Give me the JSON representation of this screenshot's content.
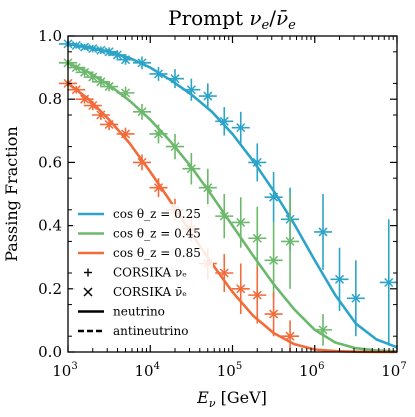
{
  "chart_data": {
    "type": "line",
    "title": "Prompt νₑ/ν̄ₑ",
    "title_parts": {
      "pre": "Prompt ",
      "nu": "ν",
      "sub_e": "e",
      "slash": "/",
      "nubar": "ν̄",
      "sub_e2": "e"
    },
    "xlabel": "E_ν [GeV]",
    "xlabel_parts": {
      "E": "E",
      "sub": "ν",
      "unit": " [GeV]"
    },
    "ylabel": "Passing Fraction",
    "x_scale": "log",
    "xlim": [
      1000,
      10000000
    ],
    "ylim": [
      0,
      1.0
    ],
    "x_ticks": [
      {
        "value": 1000,
        "base": "10",
        "exp": "3"
      },
      {
        "value": 10000,
        "base": "10",
        "exp": "4"
      },
      {
        "value": 100000,
        "base": "10",
        "exp": "5"
      },
      {
        "value": 1000000,
        "base": "10",
        "exp": "6"
      },
      {
        "value": 10000000,
        "base": "10",
        "exp": "7"
      }
    ],
    "y_ticks": [
      {
        "value": 0.0,
        "label": "0.0"
      },
      {
        "value": 0.2,
        "label": "0.2"
      },
      {
        "value": 0.4,
        "label": "0.4"
      },
      {
        "value": 0.6,
        "label": "0.6"
      },
      {
        "value": 0.8,
        "label": "0.8"
      },
      {
        "value": 1.0,
        "label": "1.0"
      }
    ],
    "grid": false,
    "legend_position": "bottom-left",
    "legend": [
      {
        "kind": "line",
        "color": "#2ca4c8",
        "label": "cos θ_z = 0.25"
      },
      {
        "kind": "line",
        "color": "#6cb86c",
        "label": "cos θ_z = 0.45"
      },
      {
        "kind": "line",
        "color": "#f26b3a",
        "label": "cos θ_z = 0.85"
      },
      {
        "kind": "plus",
        "label": "CORSIKA νₑ"
      },
      {
        "kind": "cross",
        "label": "CORSIKA ν̄ₑ"
      },
      {
        "kind": "solid",
        "label": "neutrino"
      },
      {
        "kind": "dashed",
        "label": "antineutrino"
      }
    ],
    "series": [
      {
        "name": "cos θ_z = 0.25",
        "color": "#2ca4c8",
        "curve_log10E": [
          3.0,
          3.25,
          3.5,
          3.75,
          4.0,
          4.25,
          4.5,
          4.75,
          5.0,
          5.25,
          5.5,
          5.75,
          6.0,
          6.25,
          6.5,
          6.75,
          7.0
        ],
        "curve_y": [
          0.975,
          0.965,
          0.95,
          0.93,
          0.9,
          0.86,
          0.815,
          0.76,
          0.69,
          0.605,
          0.51,
          0.405,
          0.29,
          0.18,
          0.09,
          0.04,
          0.015
        ],
        "points": [
          {
            "x": 1000,
            "y": 0.975,
            "yerr": 0.01
          },
          {
            "x": 1260,
            "y": 0.97,
            "yerr": 0.01
          },
          {
            "x": 1590,
            "y": 0.965,
            "yerr": 0.01
          },
          {
            "x": 2000,
            "y": 0.96,
            "yerr": 0.012
          },
          {
            "x": 2510,
            "y": 0.955,
            "yerr": 0.012
          },
          {
            "x": 3160,
            "y": 0.95,
            "yerr": 0.014
          },
          {
            "x": 3980,
            "y": 0.94,
            "yerr": 0.015
          },
          {
            "x": 5010,
            "y": 0.925,
            "yerr": 0.016
          },
          {
            "x": 7940,
            "y": 0.915,
            "yerr": 0.02
          },
          {
            "x": 12600,
            "y": 0.88,
            "yerr": 0.022
          },
          {
            "x": 20000,
            "y": 0.865,
            "yerr": 0.03
          },
          {
            "x": 31600,
            "y": 0.83,
            "yerr": 0.035
          },
          {
            "x": 50100,
            "y": 0.81,
            "yerr": 0.04
          },
          {
            "x": 79400,
            "y": 0.73,
            "yerr": 0.045
          },
          {
            "x": 126000,
            "y": 0.71,
            "yerr": 0.05
          },
          {
            "x": 200000,
            "y": 0.6,
            "yerr": 0.06
          },
          {
            "x": 316000,
            "y": 0.49,
            "yerr": 0.08
          },
          {
            "x": 501000,
            "y": 0.42,
            "yerr": 0.1
          },
          {
            "x": 1260000,
            "y": 0.38,
            "yerr": 0.12
          },
          {
            "x": 2000000,
            "y": 0.23,
            "yerr": 0.1
          },
          {
            "x": 3160000,
            "y": 0.17,
            "yerr": 0.12
          },
          {
            "x": 7940000,
            "y": 0.22,
            "yerr": 0.2
          }
        ]
      },
      {
        "name": "cos θ_z = 0.45",
        "color": "#6cb86c",
        "curve_log10E": [
          3.0,
          3.25,
          3.5,
          3.75,
          4.0,
          4.25,
          4.5,
          4.75,
          5.0,
          5.25,
          5.5,
          5.75,
          6.0,
          6.25,
          6.5,
          6.75,
          7.0
        ],
        "curve_y": [
          0.915,
          0.885,
          0.845,
          0.795,
          0.735,
          0.665,
          0.585,
          0.495,
          0.4,
          0.305,
          0.215,
          0.135,
          0.07,
          0.03,
          0.012,
          0.005,
          0.002
        ],
        "points": [
          {
            "x": 1000,
            "y": 0.915,
            "yerr": 0.01
          },
          {
            "x": 1260,
            "y": 0.9,
            "yerr": 0.01
          },
          {
            "x": 1590,
            "y": 0.885,
            "yerr": 0.012
          },
          {
            "x": 2000,
            "y": 0.87,
            "yerr": 0.012
          },
          {
            "x": 2510,
            "y": 0.855,
            "yerr": 0.014
          },
          {
            "x": 3160,
            "y": 0.84,
            "yerr": 0.015
          },
          {
            "x": 5010,
            "y": 0.82,
            "yerr": 0.02
          },
          {
            "x": 7940,
            "y": 0.76,
            "yerr": 0.025
          },
          {
            "x": 12600,
            "y": 0.69,
            "yerr": 0.03
          },
          {
            "x": 20000,
            "y": 0.65,
            "yerr": 0.04
          },
          {
            "x": 31600,
            "y": 0.58,
            "yerr": 0.05
          },
          {
            "x": 50100,
            "y": 0.52,
            "yerr": 0.06
          },
          {
            "x": 79400,
            "y": 0.43,
            "yerr": 0.07
          },
          {
            "x": 126000,
            "y": 0.41,
            "yerr": 0.08
          },
          {
            "x": 200000,
            "y": 0.36,
            "yerr": 0.1
          },
          {
            "x": 316000,
            "y": 0.29,
            "yerr": 0.12
          },
          {
            "x": 501000,
            "y": 0.35,
            "yerr": 0.15
          },
          {
            "x": 1260000,
            "y": 0.07,
            "yerr": 0.05
          }
        ]
      },
      {
        "name": "cos θ_z = 0.85",
        "color": "#f26b3a",
        "curve_log10E": [
          3.0,
          3.25,
          3.5,
          3.75,
          4.0,
          4.25,
          4.5,
          4.75,
          5.0,
          5.25,
          5.5,
          5.75,
          6.0,
          6.25,
          6.5,
          6.75,
          7.0
        ],
        "curve_y": [
          0.85,
          0.8,
          0.735,
          0.66,
          0.57,
          0.475,
          0.375,
          0.28,
          0.19,
          0.115,
          0.06,
          0.025,
          0.008,
          0.003,
          0.001,
          0.0,
          0.0
        ],
        "points": [
          {
            "x": 1000,
            "y": 0.85,
            "yerr": 0.01
          },
          {
            "x": 1260,
            "y": 0.83,
            "yerr": 0.012
          },
          {
            "x": 1590,
            "y": 0.8,
            "yerr": 0.014
          },
          {
            "x": 2000,
            "y": 0.78,
            "yerr": 0.015
          },
          {
            "x": 2510,
            "y": 0.75,
            "yerr": 0.016
          },
          {
            "x": 3160,
            "y": 0.72,
            "yerr": 0.018
          },
          {
            "x": 5010,
            "y": 0.69,
            "yerr": 0.02
          },
          {
            "x": 7940,
            "y": 0.6,
            "yerr": 0.025
          },
          {
            "x": 12600,
            "y": 0.52,
            "yerr": 0.03
          },
          {
            "x": 20000,
            "y": 0.45,
            "yerr": 0.035
          },
          {
            "x": 31600,
            "y": 0.39,
            "yerr": 0.04
          },
          {
            "x": 50100,
            "y": 0.28,
            "yerr": 0.05
          },
          {
            "x": 79400,
            "y": 0.25,
            "yerr": 0.06
          },
          {
            "x": 126000,
            "y": 0.2,
            "yerr": 0.08
          },
          {
            "x": 200000,
            "y": 0.18,
            "yerr": 0.09
          },
          {
            "x": 316000,
            "y": 0.12,
            "yerr": 0.07
          },
          {
            "x": 501000,
            "y": 0.05,
            "yerr": 0.05
          }
        ]
      }
    ]
  }
}
